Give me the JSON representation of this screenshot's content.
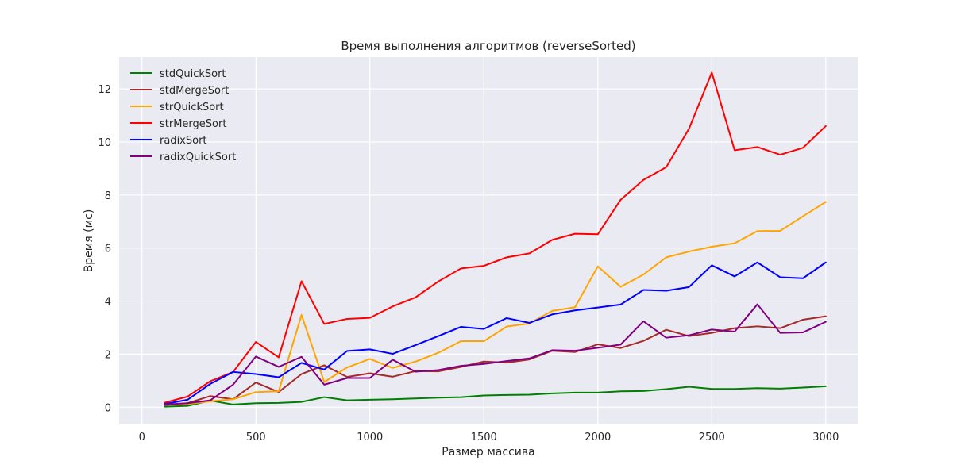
{
  "chart_data": {
    "type": "line",
    "title": "Время выполнения алгоритмов (reverseSorted)",
    "xlabel": "Размер массива",
    "ylabel": "Время (мс)",
    "xlim": [
      -100,
      3140
    ],
    "ylim": [
      -0.65,
      13.2
    ],
    "xticks": [
      0,
      500,
      1000,
      1500,
      2000,
      2500,
      3000
    ],
    "yticks": [
      0,
      2,
      4,
      6,
      8,
      10,
      12
    ],
    "grid": true,
    "legend_position": "top-left",
    "background_color": "#eaeaf2",
    "x": [
      100,
      200,
      300,
      400,
      500,
      600,
      700,
      800,
      900,
      1000,
      1100,
      1200,
      1300,
      1400,
      1500,
      1600,
      1700,
      1800,
      1900,
      2000,
      2100,
      2200,
      2300,
      2400,
      2500,
      2600,
      2700,
      2800,
      2900,
      3000
    ],
    "series": [
      {
        "name": "stdQuickSort",
        "color": "#008000",
        "values": [
          0.02,
          0.05,
          0.25,
          0.1,
          0.15,
          0.16,
          0.2,
          0.38,
          0.26,
          0.28,
          0.3,
          0.33,
          0.36,
          0.38,
          0.44,
          0.46,
          0.47,
          0.52,
          0.55,
          0.55,
          0.6,
          0.61,
          0.68,
          0.77,
          0.69,
          0.69,
          0.72,
          0.7,
          0.74,
          0.79
        ]
      },
      {
        "name": "stdMergeSort",
        "color": "#a52a2a",
        "values": [
          0.08,
          0.15,
          0.42,
          0.3,
          0.93,
          0.57,
          1.25,
          1.58,
          1.14,
          1.28,
          1.15,
          1.36,
          1.35,
          1.52,
          1.72,
          1.68,
          1.8,
          2.13,
          2.08,
          2.37,
          2.23,
          2.5,
          2.92,
          2.68,
          2.8,
          2.98,
          3.05,
          2.98,
          3.3,
          3.43
        ]
      },
      {
        "name": "strQuickSort",
        "color": "#ffa500",
        "values": [
          0.1,
          0.12,
          0.22,
          0.3,
          0.57,
          0.6,
          3.48,
          0.95,
          1.5,
          1.82,
          1.48,
          1.72,
          2.05,
          2.49,
          2.49,
          3.04,
          3.16,
          3.63,
          3.77,
          5.31,
          4.54,
          5.0,
          5.65,
          5.87,
          6.05,
          6.18,
          6.64,
          6.65,
          7.2,
          7.74
        ]
      },
      {
        "name": "strMergeSort",
        "color": "#ff0000",
        "values": [
          0.17,
          0.4,
          0.98,
          1.33,
          2.46,
          1.88,
          4.75,
          3.14,
          3.33,
          3.37,
          3.8,
          4.14,
          4.74,
          5.23,
          5.33,
          5.65,
          5.8,
          6.31,
          6.54,
          6.52,
          7.82,
          8.57,
          9.05,
          10.5,
          12.62,
          9.69,
          9.81,
          9.52,
          9.78,
          10.6
        ]
      },
      {
        "name": "radixSort",
        "color": "#0000ff",
        "values": [
          0.12,
          0.28,
          0.88,
          1.33,
          1.25,
          1.13,
          1.67,
          1.42,
          2.12,
          2.18,
          2.01,
          2.34,
          2.68,
          3.03,
          2.95,
          3.36,
          3.18,
          3.5,
          3.65,
          3.76,
          3.87,
          4.42,
          4.39,
          4.53,
          5.35,
          4.93,
          5.46,
          4.9,
          4.86,
          5.46
        ]
      },
      {
        "name": "radixQuickSort",
        "color": "#800080",
        "values": [
          0.1,
          0.15,
          0.26,
          0.85,
          1.91,
          1.52,
          1.9,
          0.85,
          1.1,
          1.1,
          1.79,
          1.34,
          1.4,
          1.56,
          1.63,
          1.74,
          1.84,
          2.15,
          2.13,
          2.24,
          2.36,
          3.24,
          2.62,
          2.71,
          2.93,
          2.85,
          3.88,
          2.8,
          2.82,
          3.22
        ]
      }
    ]
  }
}
